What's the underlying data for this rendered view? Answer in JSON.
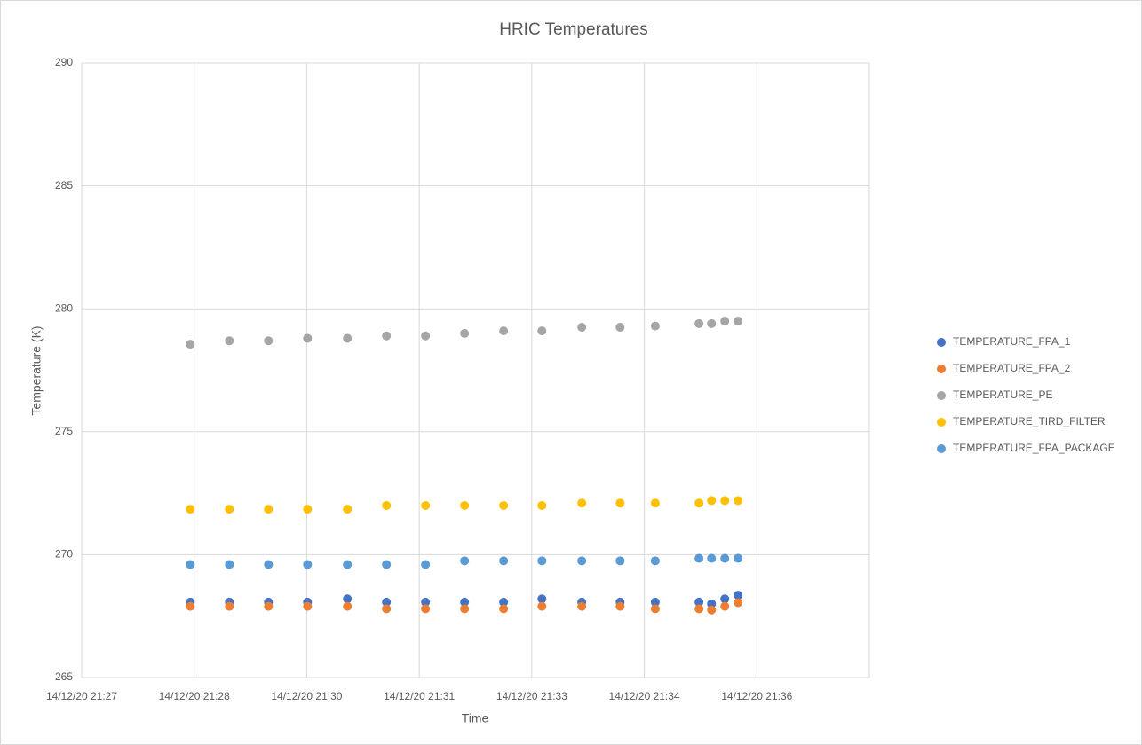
{
  "chart_data": {
    "type": "scatter",
    "title": "HRIC Temperatures",
    "x_label": "Time",
    "y_label": "Temperature (K)",
    "x": [
      1.39,
      1.89,
      2.39,
      2.89,
      3.4,
      3.9,
      4.4,
      4.9,
      5.4,
      5.89,
      6.4,
      6.89,
      7.34,
      7.9,
      8.06,
      8.23,
      8.4
    ],
    "series": [
      {
        "name": "TEMPERATURE_FPA_1",
        "color": "#4472c4",
        "values": [
          268.07,
          268.07,
          268.07,
          268.07,
          268.2,
          268.07,
          268.07,
          268.07,
          268.07,
          268.2,
          268.07,
          268.07,
          268.07,
          268.07,
          268.0,
          268.2,
          268.35
        ]
      },
      {
        "name": "TEMPERATURE_FPA_2",
        "color": "#ed7d31",
        "values": [
          267.9,
          267.9,
          267.9,
          267.9,
          267.9,
          267.8,
          267.8,
          267.8,
          267.8,
          267.9,
          267.9,
          267.9,
          267.8,
          267.8,
          267.75,
          267.9,
          268.05
        ]
      },
      {
        "name": "TEMPERATURE_PE",
        "color": "#a5a5a5",
        "values": [
          278.56,
          278.7,
          278.7,
          278.8,
          278.8,
          278.9,
          278.9,
          279.0,
          279.1,
          279.1,
          279.25,
          279.25,
          279.3,
          279.4,
          279.4,
          279.5,
          279.5
        ]
      },
      {
        "name": "TEMPERATURE_TIRD_FILTER",
        "color": "#ffc000",
        "values": [
          271.85,
          271.85,
          271.85,
          271.85,
          271.85,
          272.0,
          272.0,
          272.0,
          272.0,
          272.0,
          272.1,
          272.1,
          272.1,
          272.1,
          272.2,
          272.2,
          272.2
        ]
      },
      {
        "name": "TEMPERATURE_FPA_PACKAGE",
        "color": "#5b9bd5",
        "values": [
          269.6,
          269.6,
          269.6,
          269.6,
          269.6,
          269.6,
          269.6,
          269.75,
          269.75,
          269.75,
          269.75,
          269.75,
          269.75,
          269.85,
          269.85,
          269.85,
          269.85
        ]
      }
    ],
    "xlim": [
      0,
      10.08
    ],
    "xticks": [
      {
        "value": 0,
        "label": "14/12/20 21:27"
      },
      {
        "value": 1.44,
        "label": "14/12/20 21:28"
      },
      {
        "value": 2.88,
        "label": "14/12/20 21:30"
      },
      {
        "value": 4.32,
        "label": "14/12/20 21:31"
      },
      {
        "value": 5.76,
        "label": "14/12/20 21:33"
      },
      {
        "value": 7.2,
        "label": "14/12/20 21:34"
      },
      {
        "value": 8.64,
        "label": "14/12/20 21:36"
      }
    ],
    "ylim": [
      265,
      290
    ],
    "yticks": [
      265,
      270,
      275,
      280,
      285,
      290
    ],
    "grid": true,
    "legend": "right"
  }
}
